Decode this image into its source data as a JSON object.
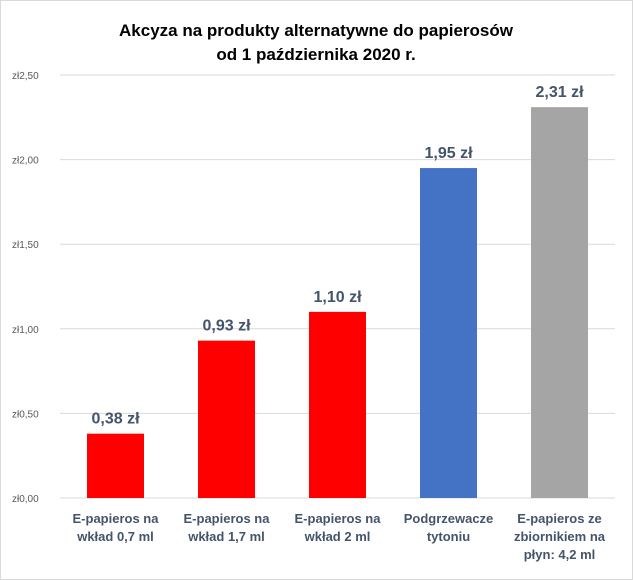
{
  "chart_data": {
    "type": "bar",
    "title_lines": [
      "Akcyza na produkty alternatywne do papierosów",
      "od 1 października 2020 r."
    ],
    "categories": [
      [
        "E-papieros na",
        "wkład 0,7 ml"
      ],
      [
        "E-papieros na",
        "wkład 1,7 ml"
      ],
      [
        "E-papieros na",
        "wkład 2 ml"
      ],
      [
        "Podgrzewacze",
        "tytoniu"
      ],
      [
        "E-papieros ze",
        "zbiornikiem na",
        "płyn: 4,2 ml"
      ]
    ],
    "values": [
      0.38,
      0.93,
      1.1,
      1.95,
      2.31
    ],
    "value_labels": [
      "0,38 zł",
      "0,93 zł",
      "1,10 zł",
      "1,95 zł",
      "2,31 zł"
    ],
    "bar_colors": [
      "#ff0000",
      "#ff0000",
      "#ff0000",
      "#4472c4",
      "#a5a5a5"
    ],
    "y_ticks": [
      0,
      0.5,
      1.0,
      1.5,
      2.0,
      2.5
    ],
    "y_tick_labels": [
      "zł0,00",
      "zł0,50",
      "zł1,00",
      "zł1,50",
      "zł2,00",
      "zł2,50"
    ],
    "ylim": [
      0,
      2.5
    ],
    "grid": true,
    "legend": "none",
    "colors": {
      "gridline": "#d9d9d9",
      "label_text": "#44546a",
      "tick_text": "#595959"
    }
  }
}
